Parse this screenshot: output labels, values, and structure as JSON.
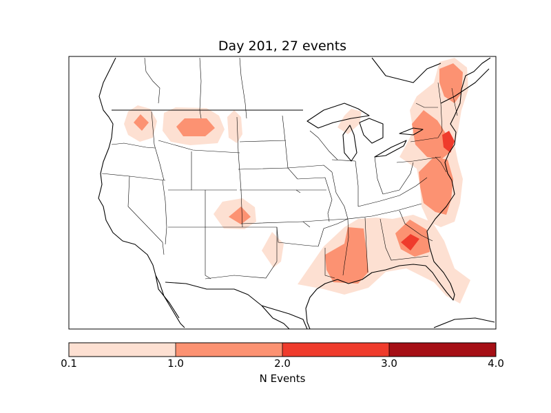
{
  "title": "Day 201, 27 events",
  "colorbar": {
    "label": "N Events",
    "ticks": [
      "0.1",
      "1.0",
      "2.0",
      "3.0",
      "4.0"
    ],
    "bins": [
      {
        "from": 0.1,
        "to": 1.0,
        "color": "#fde0d2"
      },
      {
        "from": 1.0,
        "to": 2.0,
        "color": "#fc9272"
      },
      {
        "from": 2.0,
        "to": 3.0,
        "color": "#ef3b2c"
      },
      {
        "from": 3.0,
        "to": 4.0,
        "color": "#a50f15"
      }
    ]
  },
  "colors": {
    "light": "#fde0d2",
    "medium": "#fc9272",
    "strong": "#ef3b2c",
    "outline": "#000000"
  },
  "map": {
    "projection": "lambert-conformal",
    "region": "contiguous United States",
    "layers": [
      "coastlines",
      "country borders",
      "state borders",
      "event density contours"
    ]
  }
}
